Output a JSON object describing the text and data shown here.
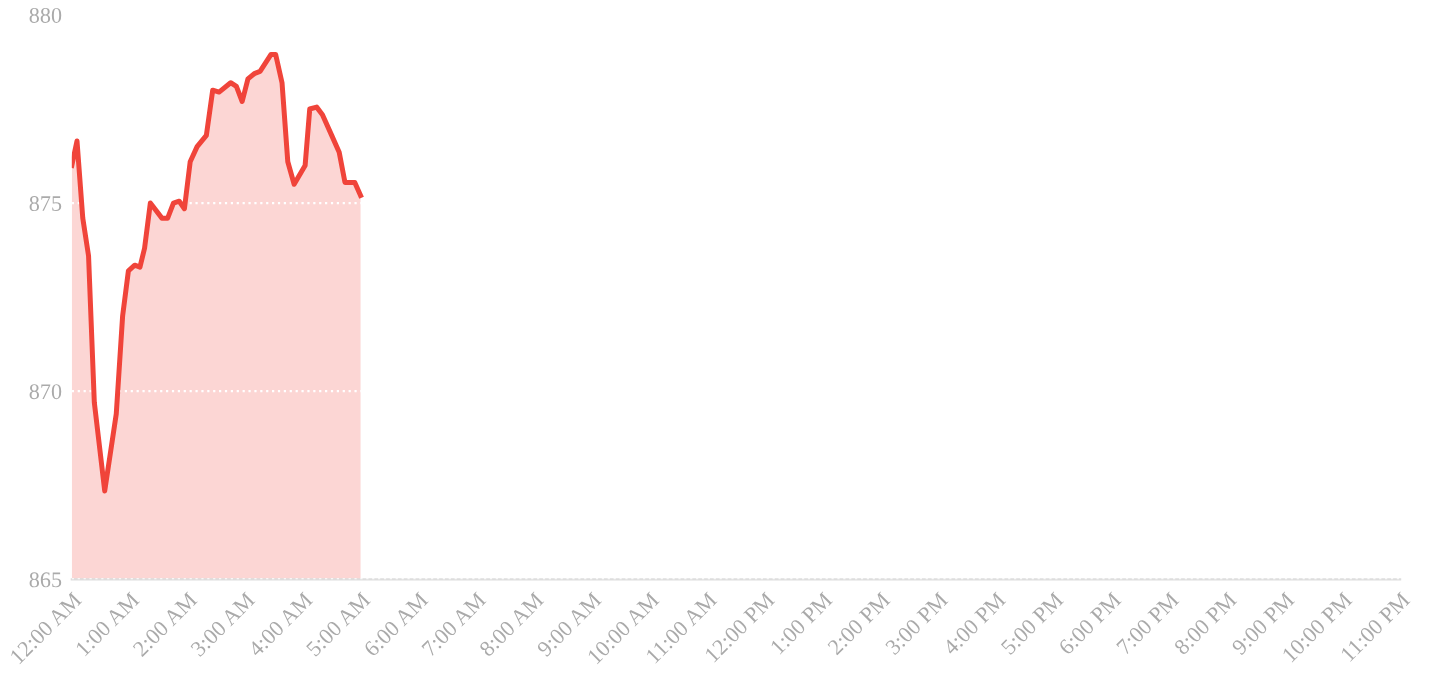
{
  "chart_data": {
    "type": "area",
    "x": [
      0.0,
      0.09,
      0.19,
      0.29,
      0.39,
      0.57,
      0.77,
      0.88,
      0.98,
      1.09,
      1.18,
      1.26,
      1.36,
      1.56,
      1.66,
      1.76,
      1.86,
      1.95,
      2.05,
      2.17,
      2.33,
      2.44,
      2.55,
      2.75,
      2.85,
      2.95,
      3.05,
      3.17,
      3.26,
      3.45,
      3.53,
      3.64,
      3.74,
      3.85,
      4.04,
      4.12,
      4.24,
      4.34,
      4.5,
      4.63,
      4.73,
      4.9,
      5.0
    ],
    "series": [
      {
        "color": "#f0443a",
        "values": [
          876.0,
          876.65,
          874.6,
          873.6,
          869.7,
          867.35,
          869.4,
          872.0,
          873.2,
          873.35,
          873.3,
          873.8,
          875.0,
          874.6,
          874.6,
          875.0,
          875.05,
          874.85,
          876.1,
          876.5,
          876.8,
          878.0,
          877.95,
          878.2,
          878.1,
          877.7,
          878.3,
          878.45,
          878.5,
          878.95,
          878.95,
          878.2,
          876.1,
          875.5,
          876.0,
          877.5,
          877.55,
          877.35,
          876.8,
          876.35,
          875.55,
          875.55,
          875.2
        ]
      }
    ],
    "xlim": [
      0,
      23
    ],
    "ylim": [
      865,
      880
    ],
    "xticks": [
      {
        "value": 0,
        "label": "12:00 AM"
      },
      {
        "value": 1,
        "label": "1:00 AM"
      },
      {
        "value": 2,
        "label": "2:00 AM"
      },
      {
        "value": 3,
        "label": "3:00 AM"
      },
      {
        "value": 4,
        "label": "4:00 AM"
      },
      {
        "value": 5,
        "label": "5:00 AM"
      },
      {
        "value": 6,
        "label": "6:00 AM"
      },
      {
        "value": 7,
        "label": "7:00 AM"
      },
      {
        "value": 8,
        "label": "8:00 AM"
      },
      {
        "value": 9,
        "label": "9:00 AM"
      },
      {
        "value": 10,
        "label": "10:00 AM"
      },
      {
        "value": 11,
        "label": "11:00 AM"
      },
      {
        "value": 12,
        "label": "12:00 PM"
      },
      {
        "value": 13,
        "label": "1:00 PM"
      },
      {
        "value": 14,
        "label": "2:00 PM"
      },
      {
        "value": 15,
        "label": "3:00 PM"
      },
      {
        "value": 16,
        "label": "4:00 PM"
      },
      {
        "value": 17,
        "label": "5:00 PM"
      },
      {
        "value": 18,
        "label": "6:00 PM"
      },
      {
        "value": 19,
        "label": "7:00 PM"
      },
      {
        "value": 20,
        "label": "8:00 PM"
      },
      {
        "value": 21,
        "label": "9:00 PM"
      },
      {
        "value": 22,
        "label": "10:00 PM"
      },
      {
        "value": 23,
        "label": "11:00 PM"
      }
    ],
    "yticks": [
      865,
      870,
      875,
      880
    ],
    "grid": "y",
    "legend": false,
    "marker": "none",
    "line_style": "solid"
  }
}
